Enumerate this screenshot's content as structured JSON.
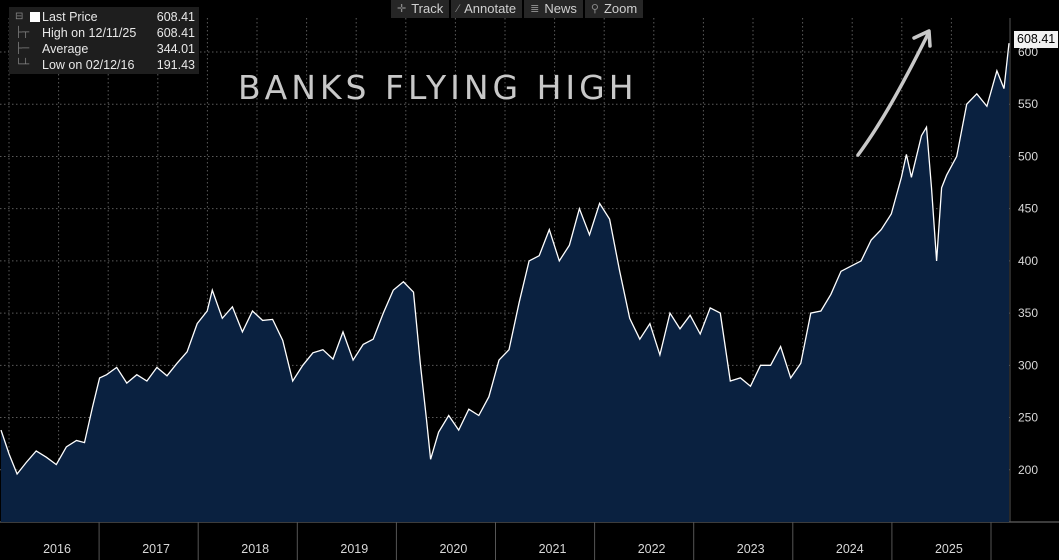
{
  "toolbar": {
    "items": [
      {
        "label": "Track",
        "icon": "crosshair-icon"
      },
      {
        "label": "Annotate",
        "icon": "pencil-icon"
      },
      {
        "label": "News",
        "icon": "news-icon"
      },
      {
        "label": "Zoom",
        "icon": "magnifier-icon"
      }
    ]
  },
  "legend": {
    "rows": [
      {
        "label": "Last Price",
        "value": "608.41"
      },
      {
        "label": "High on 12/11/25",
        "value": "608.41"
      },
      {
        "label": "Average",
        "value": "344.01"
      },
      {
        "label": "Low on 02/12/16",
        "value": "191.43"
      }
    ]
  },
  "annotation": {
    "text": "BANKS FLYING HIGH"
  },
  "last_price_tag": "608.41",
  "colors": {
    "background": "#000000",
    "area_fill": "#0a2140",
    "line": "#ffffff",
    "grid": "#5a5a5a",
    "annotation": "#c8c8c8"
  },
  "chart_data": {
    "type": "area",
    "title": "",
    "xlabel": "",
    "ylabel": "",
    "x_tick_labels": [
      "2016",
      "2017",
      "2018",
      "2019",
      "2020",
      "2021",
      "2022",
      "2023",
      "2024",
      "2025"
    ],
    "y_tick_labels": [
      "200",
      "250",
      "300",
      "350",
      "400",
      "450",
      "500",
      "550",
      "600"
    ],
    "ylim": [
      150,
      620
    ],
    "xlim": [
      2015.95,
      2026.0
    ],
    "grid": true,
    "y_axis_side": "right",
    "series": [
      {
        "values": [
          [
            2015.95,
            238
          ],
          [
            2016.03,
            215
          ],
          [
            2016.11,
            196
          ],
          [
            2016.2,
            207
          ],
          [
            2016.3,
            218
          ],
          [
            2016.4,
            212
          ],
          [
            2016.5,
            205
          ],
          [
            2016.6,
            222
          ],
          [
            2016.7,
            228
          ],
          [
            2016.78,
            226
          ],
          [
            2016.86,
            260
          ],
          [
            2016.93,
            288
          ],
          [
            2017.0,
            291
          ],
          [
            2017.1,
            298
          ],
          [
            2017.2,
            283
          ],
          [
            2017.3,
            291
          ],
          [
            2017.4,
            285
          ],
          [
            2017.5,
            298
          ],
          [
            2017.6,
            290
          ],
          [
            2017.7,
            302
          ],
          [
            2017.8,
            313
          ],
          [
            2017.9,
            340
          ],
          [
            2018.0,
            352
          ],
          [
            2018.05,
            372
          ],
          [
            2018.15,
            345
          ],
          [
            2018.25,
            356
          ],
          [
            2018.35,
            332
          ],
          [
            2018.45,
            352
          ],
          [
            2018.55,
            343
          ],
          [
            2018.65,
            344
          ],
          [
            2018.75,
            324
          ],
          [
            2018.85,
            285
          ],
          [
            2018.95,
            300
          ],
          [
            2019.05,
            312
          ],
          [
            2019.15,
            315
          ],
          [
            2019.25,
            306
          ],
          [
            2019.35,
            332
          ],
          [
            2019.45,
            305
          ],
          [
            2019.55,
            320
          ],
          [
            2019.65,
            325
          ],
          [
            2019.75,
            350
          ],
          [
            2019.85,
            372
          ],
          [
            2019.95,
            380
          ],
          [
            2020.05,
            370
          ],
          [
            2020.12,
            300
          ],
          [
            2020.18,
            248
          ],
          [
            2020.22,
            210
          ],
          [
            2020.3,
            236
          ],
          [
            2020.4,
            252
          ],
          [
            2020.5,
            238
          ],
          [
            2020.6,
            258
          ],
          [
            2020.7,
            252
          ],
          [
            2020.8,
            270
          ],
          [
            2020.9,
            305
          ],
          [
            2021.0,
            315
          ],
          [
            2021.1,
            360
          ],
          [
            2021.2,
            400
          ],
          [
            2021.3,
            405
          ],
          [
            2021.4,
            430
          ],
          [
            2021.5,
            400
          ],
          [
            2021.6,
            415
          ],
          [
            2021.7,
            450
          ],
          [
            2021.8,
            425
          ],
          [
            2021.9,
            455
          ],
          [
            2022.0,
            440
          ],
          [
            2022.1,
            390
          ],
          [
            2022.2,
            345
          ],
          [
            2022.3,
            325
          ],
          [
            2022.4,
            340
          ],
          [
            2022.5,
            310
          ],
          [
            2022.6,
            350
          ],
          [
            2022.7,
            335
          ],
          [
            2022.8,
            348
          ],
          [
            2022.9,
            330
          ],
          [
            2023.0,
            355
          ],
          [
            2023.1,
            350
          ],
          [
            2023.2,
            285
          ],
          [
            2023.3,
            288
          ],
          [
            2023.4,
            280
          ],
          [
            2023.5,
            300
          ],
          [
            2023.6,
            300
          ],
          [
            2023.7,
            318
          ],
          [
            2023.8,
            288
          ],
          [
            2023.9,
            302
          ],
          [
            2024.0,
            350
          ],
          [
            2024.1,
            352
          ],
          [
            2024.2,
            368
          ],
          [
            2024.3,
            390
          ],
          [
            2024.4,
            395
          ],
          [
            2024.5,
            400
          ],
          [
            2024.6,
            420
          ],
          [
            2024.7,
            430
          ],
          [
            2024.8,
            445
          ],
          [
            2024.9,
            480
          ],
          [
            2024.95,
            502
          ],
          [
            2025.0,
            480
          ],
          [
            2025.1,
            520
          ],
          [
            2025.15,
            528
          ],
          [
            2025.2,
            470
          ],
          [
            2025.25,
            400
          ],
          [
            2025.3,
            470
          ],
          [
            2025.35,
            482
          ],
          [
            2025.45,
            500
          ],
          [
            2025.55,
            550
          ],
          [
            2025.65,
            560
          ],
          [
            2025.75,
            548
          ],
          [
            2025.85,
            582
          ],
          [
            2025.92,
            565
          ],
          [
            2025.97,
            608.41
          ]
        ]
      }
    ]
  }
}
